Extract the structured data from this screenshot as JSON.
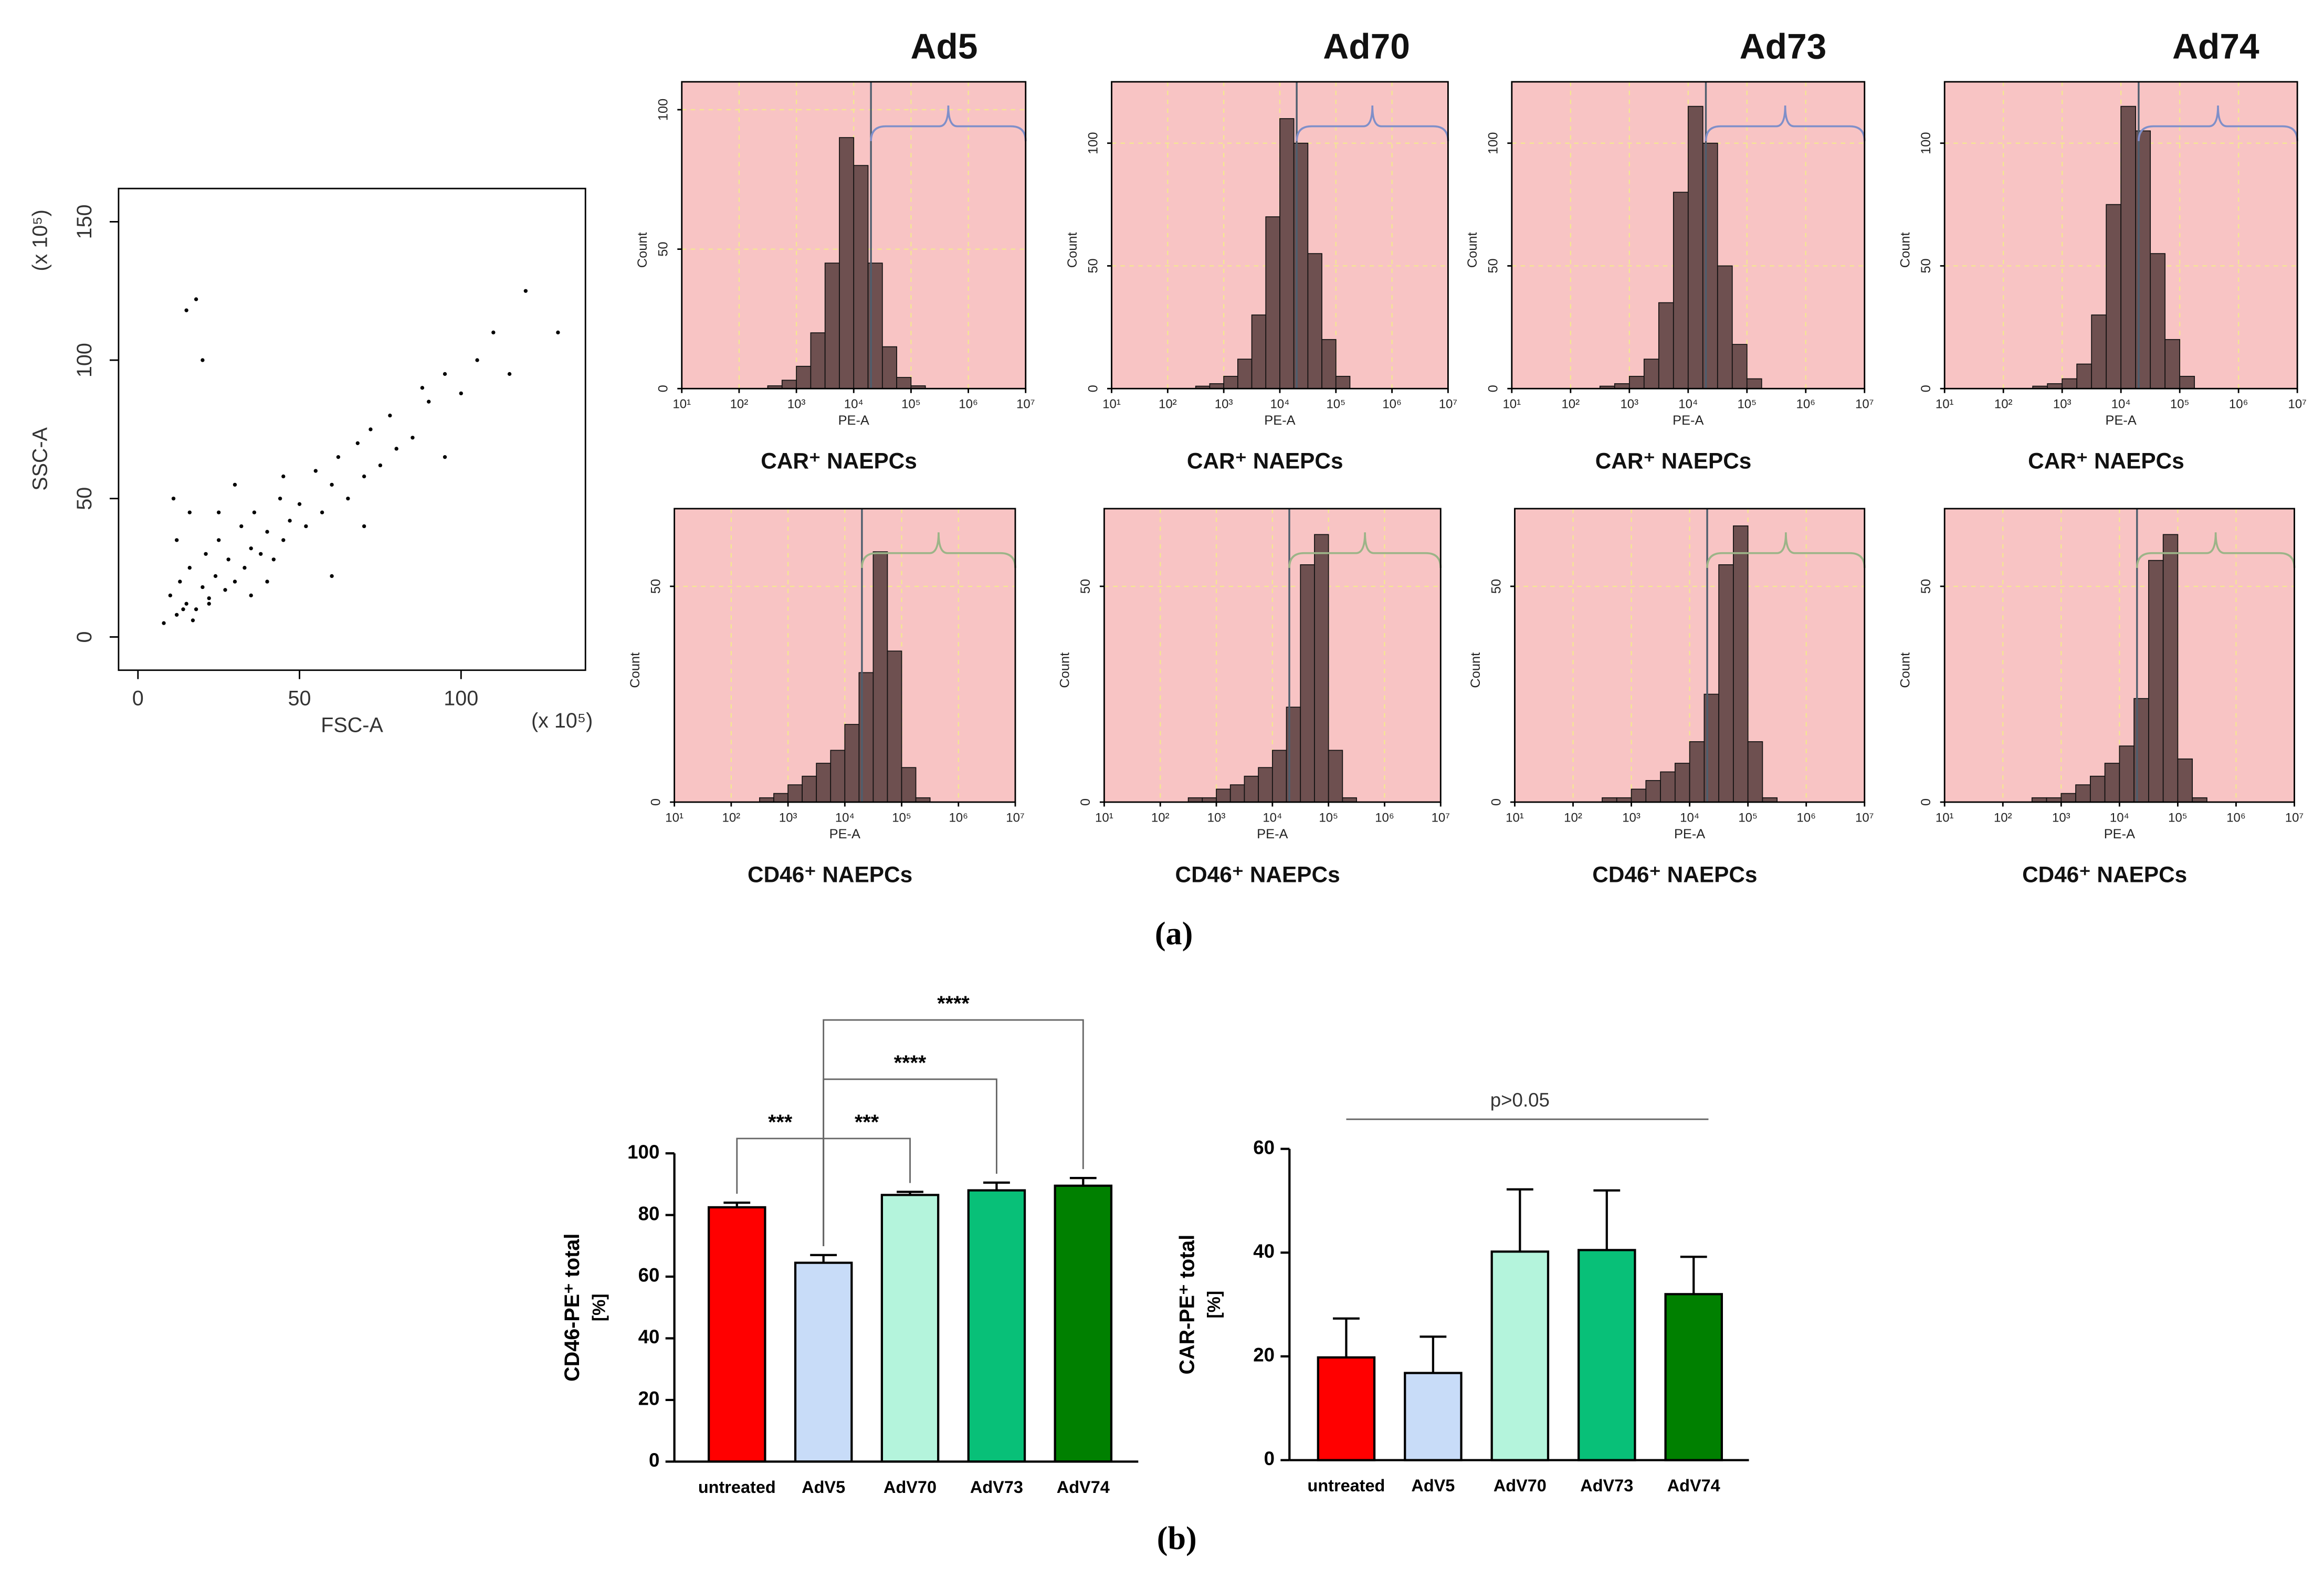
{
  "panel_labels": [
    "(a)",
    "(b)"
  ],
  "chart_data": [
    {
      "type": "scatter",
      "x_label": "FSC-A",
      "y_label": "SSC-A",
      "x_unit": "(x 10⁵)",
      "y_unit": "(x 10⁵)",
      "xlim": [
        -6,
        138.5
      ],
      "ylim": [
        -12,
        162
      ],
      "xticks": [
        0,
        50,
        100
      ],
      "yticks": [
        0,
        50,
        100,
        150
      ],
      "color": "#000000",
      "x": [
        8,
        10,
        12,
        13,
        15,
        16,
        18,
        20,
        21,
        22,
        24,
        25,
        27,
        28,
        30,
        32,
        33,
        35,
        36,
        38,
        40,
        42,
        44,
        45,
        47,
        50,
        52,
        55,
        57,
        60,
        62,
        65,
        68,
        70,
        72,
        75,
        78,
        80,
        85,
        88,
        90,
        95,
        100,
        105,
        110,
        115,
        120,
        130,
        12,
        15,
        18,
        20,
        25,
        30,
        35,
        40,
        14,
        17,
        22,
        11,
        16,
        70,
        95,
        60,
        45
      ],
      "y": [
        5,
        15,
        8,
        20,
        12,
        25,
        10,
        18,
        30,
        14,
        22,
        35,
        17,
        28,
        20,
        40,
        25,
        32,
        45,
        30,
        38,
        28,
        50,
        35,
        42,
        48,
        40,
        60,
        45,
        55,
        65,
        50,
        70,
        58,
        75,
        62,
        80,
        68,
        72,
        90,
        85,
        95,
        88,
        100,
        110,
        95,
        125,
        110,
        35,
        118,
        122,
        100,
        45,
        55,
        15,
        20,
        10,
        6,
        12,
        50,
        45,
        40,
        65,
        22,
        58
      ]
    },
    {
      "type": "histogram",
      "title": "Ad5",
      "x_label": "PE-A",
      "y_label": "Count",
      "caption": "CAR⁺ NAEPCs",
      "xscale": "log",
      "xlim": [
        10,
        10000000
      ],
      "xticks": [
        {
          "value": 10,
          "label": "10¹"
        },
        {
          "value": 100,
          "label": "10²"
        },
        {
          "value": 1000,
          "label": "10³"
        },
        {
          "value": 10000,
          "label": "10⁴"
        },
        {
          "value": 100000,
          "label": "10⁵"
        },
        {
          "value": 1000000,
          "label": "10⁶"
        },
        {
          "value": 10000000,
          "label": "10⁷"
        }
      ],
      "ylim": [
        0,
        110
      ],
      "yticks": [
        0,
        50,
        100
      ],
      "bins": [
        316,
        562,
        1000,
        1778,
        3162,
        5623,
        10000,
        17783,
        31623,
        56234,
        100000,
        177828,
        316228
      ],
      "counts": [
        1,
        3,
        8,
        20,
        45,
        90,
        80,
        45,
        15,
        4,
        1,
        0
      ],
      "gate": 20000,
      "color": "#6e5050",
      "background": "#f8c4c4",
      "gate_color": "#7f8fc9",
      "grid": true
    },
    {
      "type": "histogram",
      "title": "Ad70",
      "x_label": "PE-A",
      "y_label": "Count",
      "caption": "CAR⁺ NAEPCs",
      "xscale": "log",
      "xlim": [
        10,
        10000000
      ],
      "xticks": [
        {
          "value": 10,
          "label": "10¹"
        },
        {
          "value": 100,
          "label": "10²"
        },
        {
          "value": 1000,
          "label": "10³"
        },
        {
          "value": 10000,
          "label": "10⁴"
        },
        {
          "value": 100000,
          "label": "10⁵"
        },
        {
          "value": 1000000,
          "label": "10⁶"
        },
        {
          "value": 10000000,
          "label": "10⁷"
        }
      ],
      "ylim": [
        0,
        125
      ],
      "yticks": [
        0,
        50,
        100
      ],
      "bins": [
        316,
        562,
        1000,
        1778,
        3162,
        5623,
        10000,
        17783,
        31623,
        56234,
        100000,
        177828,
        316228
      ],
      "counts": [
        1,
        2,
        5,
        12,
        30,
        70,
        110,
        100,
        55,
        20,
        5,
        0
      ],
      "gate": 20000,
      "color": "#6e5050",
      "background": "#f8c4c4",
      "gate_color": "#7f8fc9",
      "grid": true
    },
    {
      "type": "histogram",
      "title": "Ad73",
      "x_label": "PE-A",
      "y_label": "Count",
      "caption": "CAR⁺ NAEPCs",
      "xscale": "log",
      "xlim": [
        10,
        10000000
      ],
      "xticks": [
        {
          "value": 10,
          "label": "10¹"
        },
        {
          "value": 100,
          "label": "10²"
        },
        {
          "value": 1000,
          "label": "10³"
        },
        {
          "value": 10000,
          "label": "10⁴"
        },
        {
          "value": 100000,
          "label": "10⁵"
        },
        {
          "value": 1000000,
          "label": "10⁶"
        },
        {
          "value": 10000000,
          "label": "10⁷"
        }
      ],
      "ylim": [
        0,
        125
      ],
      "yticks": [
        0,
        50,
        100
      ],
      "bins": [
        316,
        562,
        1000,
        1778,
        3162,
        5623,
        10000,
        17783,
        31623,
        56234,
        100000,
        177828,
        316228
      ],
      "counts": [
        1,
        2,
        5,
        12,
        35,
        80,
        115,
        100,
        50,
        18,
        4,
        0
      ],
      "gate": 20000,
      "color": "#6e5050",
      "background": "#f8c4c4",
      "gate_color": "#7f8fc9",
      "grid": true
    },
    {
      "type": "histogram",
      "title": "Ad74",
      "x_label": "PE-A",
      "y_label": "Count",
      "caption": "CAR⁺ NAEPCs",
      "xscale": "log",
      "xlim": [
        10,
        10000000
      ],
      "xticks": [
        {
          "value": 10,
          "label": "10¹"
        },
        {
          "value": 100,
          "label": "10²"
        },
        {
          "value": 1000,
          "label": "10³"
        },
        {
          "value": 10000,
          "label": "10⁴"
        },
        {
          "value": 100000,
          "label": "10⁵"
        },
        {
          "value": 1000000,
          "label": "10⁶"
        },
        {
          "value": 10000000,
          "label": "10⁷"
        }
      ],
      "ylim": [
        0,
        125
      ],
      "yticks": [
        0,
        50,
        100
      ],
      "bins": [
        316,
        562,
        1000,
        1778,
        3162,
        5623,
        10000,
        17783,
        31623,
        56234,
        100000,
        177828,
        316228
      ],
      "counts": [
        1,
        2,
        4,
        10,
        30,
        75,
        115,
        105,
        55,
        20,
        5,
        0
      ],
      "gate": 20000,
      "color": "#6e5050",
      "background": "#f8c4c4",
      "gate_color": "#7f8fc9",
      "grid": true
    },
    {
      "type": "histogram",
      "x_label": "PE-A",
      "y_label": "Count",
      "caption": "CD46⁺ NAEPCs",
      "xscale": "log",
      "xlim": [
        10,
        10000000
      ],
      "xticks": [
        {
          "value": 10,
          "label": "10¹"
        },
        {
          "value": 100,
          "label": "10²"
        },
        {
          "value": 1000,
          "label": "10³"
        },
        {
          "value": 10000,
          "label": "10⁴"
        },
        {
          "value": 100000,
          "label": "10⁵"
        },
        {
          "value": 1000000,
          "label": "10⁶"
        },
        {
          "value": 10000000,
          "label": "10⁷"
        }
      ],
      "ylim": [
        0,
        68
      ],
      "yticks": [
        0,
        50
      ],
      "bins": [
        316,
        562,
        1000,
        1778,
        3162,
        5623,
        10000,
        17783,
        31623,
        56234,
        100000,
        177828,
        316228
      ],
      "counts": [
        1,
        2,
        4,
        6,
        9,
        12,
        18,
        30,
        58,
        35,
        8,
        1
      ],
      "gate": 20000,
      "color": "#6e5050",
      "background": "#f8c4c4",
      "gate_color": "#9cb488",
      "grid": true
    },
    {
      "type": "histogram",
      "x_label": "PE-A",
      "y_label": "Count",
      "caption": "CD46⁺ NAEPCs",
      "xscale": "log",
      "xlim": [
        10,
        10000000
      ],
      "xticks": [
        {
          "value": 10,
          "label": "10¹"
        },
        {
          "value": 100,
          "label": "10²"
        },
        {
          "value": 1000,
          "label": "10³"
        },
        {
          "value": 10000,
          "label": "10⁴"
        },
        {
          "value": 100000,
          "label": "10⁵"
        },
        {
          "value": 1000000,
          "label": "10⁶"
        },
        {
          "value": 10000000,
          "label": "10⁷"
        }
      ],
      "ylim": [
        0,
        68
      ],
      "yticks": [
        0,
        50
      ],
      "bins": [
        316,
        562,
        1000,
        1778,
        3162,
        5623,
        10000,
        17783,
        31623,
        56234,
        100000,
        177828,
        316228
      ],
      "counts": [
        1,
        1,
        3,
        4,
        6,
        8,
        12,
        22,
        55,
        62,
        12,
        1
      ],
      "gate": 20000,
      "color": "#6e5050",
      "background": "#f8c4c4",
      "gate_color": "#9cb488",
      "grid": true
    },
    {
      "type": "histogram",
      "x_label": "PE-A",
      "y_label": "Count",
      "caption": "CD46⁺ NAEPCs",
      "xscale": "log",
      "xlim": [
        10,
        10000000
      ],
      "xticks": [
        {
          "value": 10,
          "label": "10¹"
        },
        {
          "value": 100,
          "label": "10²"
        },
        {
          "value": 1000,
          "label": "10³"
        },
        {
          "value": 10000,
          "label": "10⁴"
        },
        {
          "value": 100000,
          "label": "10⁵"
        },
        {
          "value": 1000000,
          "label": "10⁶"
        },
        {
          "value": 10000000,
          "label": "10⁷"
        }
      ],
      "ylim": [
        0,
        68
      ],
      "yticks": [
        0,
        50
      ],
      "bins": [
        316,
        562,
        1000,
        1778,
        3162,
        5623,
        10000,
        17783,
        31623,
        56234,
        100000,
        177828,
        316228
      ],
      "counts": [
        1,
        1,
        3,
        5,
        7,
        9,
        14,
        25,
        55,
        64,
        14,
        1
      ],
      "gate": 20000,
      "color": "#6e5050",
      "background": "#f8c4c4",
      "gate_color": "#9cb488",
      "grid": true
    },
    {
      "type": "histogram",
      "x_label": "PE-A",
      "y_label": "Count",
      "caption": "CD46⁺ NAEPCs",
      "xscale": "log",
      "xlim": [
        10,
        10000000
      ],
      "xticks": [
        {
          "value": 10,
          "label": "10¹"
        },
        {
          "value": 100,
          "label": "10²"
        },
        {
          "value": 1000,
          "label": "10³"
        },
        {
          "value": 10000,
          "label": "10⁴"
        },
        {
          "value": 100000,
          "label": "10⁵"
        },
        {
          "value": 1000000,
          "label": "10⁶"
        },
        {
          "value": 10000000,
          "label": "10⁷"
        }
      ],
      "ylim": [
        0,
        68
      ],
      "yticks": [
        0,
        50
      ],
      "bins": [
        316,
        562,
        1000,
        1778,
        3162,
        5623,
        10000,
        17783,
        31623,
        56234,
        100000,
        177828,
        316228
      ],
      "counts": [
        1,
        1,
        2,
        4,
        6,
        9,
        13,
        24,
        56,
        62,
        10,
        1
      ],
      "gate": 20000,
      "color": "#6e5050",
      "background": "#f8c4c4",
      "gate_color": "#9cb488",
      "grid": true
    },
    {
      "type": "bar",
      "y_label": "CD46-PE⁺ total",
      "y_unit": "[%]",
      "categories": [
        "untreated",
        "AdV5",
        "AdV70",
        "AdV73",
        "AdV74"
      ],
      "values": [
        82.5,
        64.5,
        86.5,
        88,
        89.5
      ],
      "errors": [
        1.5,
        2.5,
        1,
        2.5,
        2.5
      ],
      "colors": [
        "#ff0000",
        "#c8dcf8",
        "#b4f4dc",
        "#08c078",
        "#008000"
      ],
      "ylim": [
        0,
        100
      ],
      "yticks": [
        0,
        20,
        40,
        60,
        80,
        100
      ],
      "comparisons": [
        {
          "label": "***",
          "pair": [
            0,
            1
          ]
        },
        {
          "label": "***",
          "pair": [
            1,
            2
          ]
        },
        {
          "label": "****",
          "pair": [
            1,
            3
          ]
        },
        {
          "label": "****",
          "pair": [
            1,
            4
          ]
        }
      ]
    },
    {
      "type": "bar",
      "y_label": "CAR-PE⁺ total",
      "y_unit": "[%]",
      "categories": [
        "untreated",
        "AdV5",
        "AdV70",
        "AdV73",
        "AdV74"
      ],
      "values": [
        19.8,
        16.8,
        40.2,
        40.5,
        32
      ],
      "errors": [
        7.5,
        7,
        12,
        11.5,
        7.2
      ],
      "colors": [
        "#ff0000",
        "#c8dcf8",
        "#b4f4dc",
        "#08c078",
        "#008000"
      ],
      "ylim": [
        0,
        60
      ],
      "yticks": [
        0,
        20,
        40,
        60
      ],
      "annotation": "p>0.05"
    }
  ]
}
